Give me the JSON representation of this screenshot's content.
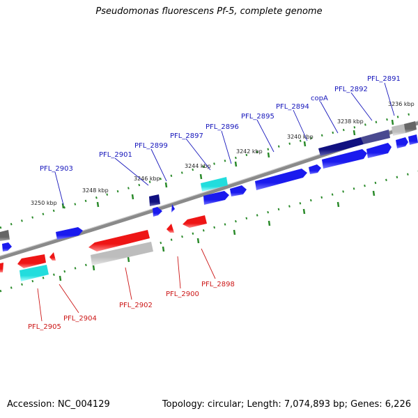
{
  "title": "Pseudomonas fluorescens Pf-5, complete genome",
  "footer": {
    "accession": "Accession: NC_004129",
    "summary": "Topology: circular; Length: 7,074,893 bp; Genes: 6,226"
  },
  "colors": {
    "forward_gene": "#1a1aee",
    "reverse_gene": "#ee1515",
    "cyan_gene": "#22dddd",
    "dark_gene": "#101080",
    "gray_gene": "#b5b5b5",
    "backbone": "#8a8a8a",
    "tick": "#2a8a2a",
    "forward_label": "#1515bb",
    "reverse_label": "#cc1515"
  },
  "kbp_ticks": [
    "3236 kbp",
    "3238 kbp",
    "3240 kbp",
    "3242 kbp",
    "3244 kbp",
    "3246 kbp",
    "3248 kbp",
    "3250 kbp"
  ],
  "gene_labels": {
    "forward": [
      "PFL_2891",
      "PFL_2892",
      "copA",
      "PFL_2894",
      "PFL_2895",
      "PFL_2896",
      "PFL_2897",
      "PFL_2899",
      "PFL_2901",
      "PFL_2903"
    ],
    "reverse": [
      "PFL_2898",
      "PFL_2900",
      "PFL_2902",
      "PFL_2904",
      "PFL_2905"
    ]
  }
}
